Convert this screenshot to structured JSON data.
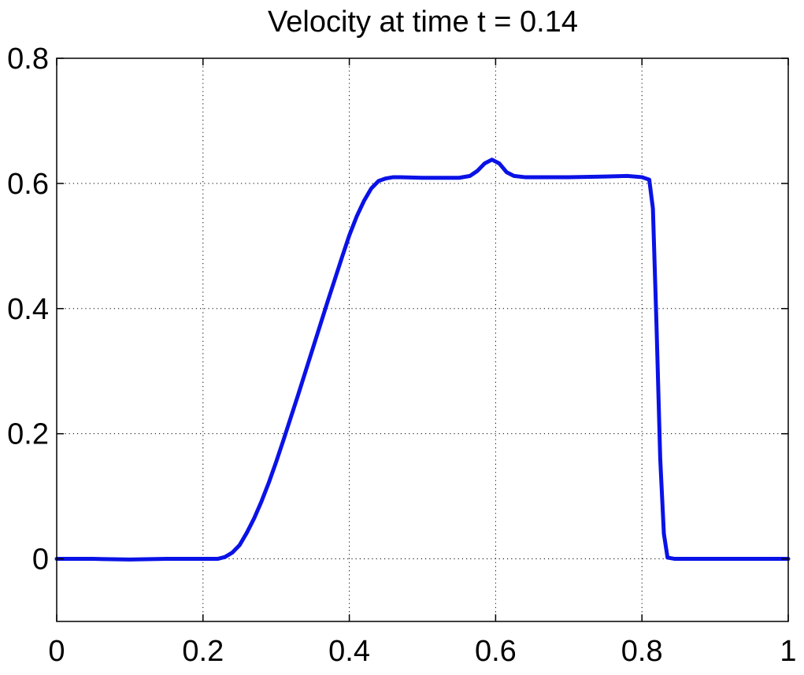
{
  "chart_data": {
    "type": "line",
    "title": "Velocity at time t = 0.14",
    "xlabel": "",
    "ylabel": "",
    "xlim": [
      0,
      1
    ],
    "ylim": [
      -0.1,
      0.8
    ],
    "grid": true,
    "grid_style": "dotted",
    "xticks": [
      0,
      0.2,
      0.4,
      0.6,
      0.8,
      1
    ],
    "xtick_labels": [
      "0",
      "0.2",
      "0.4",
      "0.6",
      "0.8",
      "1"
    ],
    "yticks": [
      0,
      0.2,
      0.4,
      0.6,
      0.8
    ],
    "ytick_labels": [
      "0",
      "0.2",
      "0.4",
      "0.6",
      "0.8"
    ],
    "colors": {
      "line": "#0a12e6",
      "axes": "#000000",
      "grid": "#000000",
      "background": "#ffffff"
    },
    "series": [
      {
        "x": [
          0,
          0.05,
          0.1,
          0.15,
          0.2,
          0.22,
          0.23,
          0.24,
          0.25,
          0.26,
          0.27,
          0.28,
          0.29,
          0.3,
          0.31,
          0.32,
          0.33,
          0.34,
          0.35,
          0.36,
          0.37,
          0.38,
          0.39,
          0.4,
          0.41,
          0.42,
          0.43,
          0.44,
          0.45,
          0.46,
          0.47,
          0.5,
          0.55,
          0.565,
          0.575,
          0.585,
          0.595,
          0.605,
          0.615,
          0.625,
          0.64,
          0.66,
          0.7,
          0.75,
          0.78,
          0.8,
          0.81,
          0.815,
          0.82,
          0.825,
          0.83,
          0.835,
          0.845,
          0.9,
          1.0
        ],
        "values": [
          0,
          0,
          -0.001,
          0,
          0,
          0,
          0.003,
          0.01,
          0.022,
          0.042,
          0.065,
          0.092,
          0.122,
          0.155,
          0.19,
          0.226,
          0.262,
          0.299,
          0.336,
          0.373,
          0.41,
          0.446,
          0.482,
          0.517,
          0.547,
          0.572,
          0.592,
          0.604,
          0.608,
          0.61,
          0.61,
          0.609,
          0.609,
          0.612,
          0.62,
          0.632,
          0.638,
          0.632,
          0.618,
          0.612,
          0.61,
          0.61,
          0.61,
          0.611,
          0.612,
          0.61,
          0.606,
          0.56,
          0.37,
          0.16,
          0.04,
          0.002,
          0,
          0,
          0
        ]
      }
    ]
  }
}
